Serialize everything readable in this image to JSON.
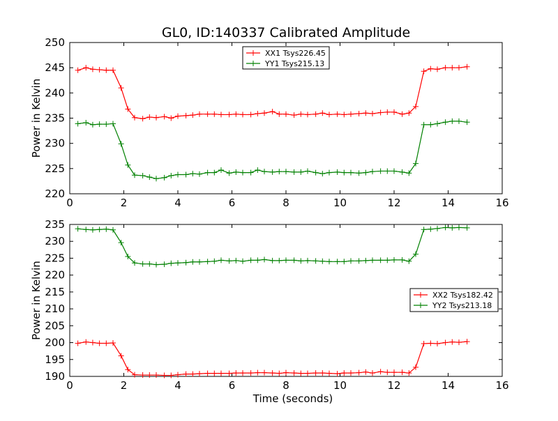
{
  "figure_title": "GL0, ID:140337 Calibrated Amplitude",
  "colors": {
    "red": "#ff0000",
    "green": "#008000",
    "axis": "#000000",
    "background": "#ffffff"
  },
  "chart_data": [
    {
      "type": "line",
      "ylabel": "Power in Kelvin",
      "xlabel": "",
      "xlim": [
        0,
        16
      ],
      "ylim": [
        220,
        250
      ],
      "xticks": [
        0,
        2,
        4,
        6,
        8,
        10,
        12,
        14,
        16
      ],
      "yticks": [
        220,
        225,
        230,
        235,
        240,
        245,
        250
      ],
      "legend_position": "top-center",
      "x": [
        0.3,
        0.6,
        0.85,
        1.1,
        1.35,
        1.6,
        1.9,
        2.15,
        2.4,
        2.7,
        2.95,
        3.2,
        3.5,
        3.75,
        4.0,
        4.3,
        4.55,
        4.8,
        5.1,
        5.35,
        5.6,
        5.9,
        6.15,
        6.4,
        6.7,
        6.95,
        7.2,
        7.5,
        7.75,
        8.0,
        8.3,
        8.55,
        8.8,
        9.1,
        9.35,
        9.6,
        9.9,
        10.15,
        10.4,
        10.7,
        10.95,
        11.2,
        11.5,
        11.75,
        12.0,
        12.3,
        12.55,
        12.8,
        13.1,
        13.35,
        13.6,
        13.9,
        14.15,
        14.4,
        14.7
      ],
      "series": [
        {
          "name": "XX1 Tsys226.45",
          "color": "#ff0000",
          "values": [
            244.5,
            245.0,
            244.7,
            244.6,
            244.5,
            244.5,
            241.0,
            236.8,
            235.1,
            234.9,
            235.2,
            235.1,
            235.3,
            235.0,
            235.4,
            235.5,
            235.6,
            235.8,
            235.8,
            235.8,
            235.7,
            235.7,
            235.8,
            235.7,
            235.7,
            235.9,
            236.0,
            236.3,
            235.8,
            235.8,
            235.6,
            235.8,
            235.7,
            235.8,
            236.0,
            235.7,
            235.8,
            235.7,
            235.8,
            235.9,
            236.0,
            235.9,
            236.1,
            236.2,
            236.2,
            235.8,
            236.0,
            237.3,
            244.3,
            244.8,
            244.7,
            245.0,
            245.0,
            245.0,
            245.2
          ]
        },
        {
          "name": "YY1 Tsys215.13",
          "color": "#008000",
          "values": [
            233.9,
            234.1,
            233.7,
            233.8,
            233.8,
            233.9,
            229.9,
            225.7,
            223.7,
            223.6,
            223.3,
            223.0,
            223.2,
            223.6,
            223.8,
            223.8,
            224.0,
            223.9,
            224.2,
            224.2,
            224.7,
            224.1,
            224.3,
            224.2,
            224.2,
            224.7,
            224.4,
            224.3,
            224.4,
            224.4,
            224.3,
            224.3,
            224.5,
            224.2,
            224.0,
            224.2,
            224.3,
            224.2,
            224.2,
            224.1,
            224.2,
            224.4,
            224.5,
            224.5,
            224.5,
            224.3,
            224.1,
            226.0,
            233.7,
            233.7,
            233.9,
            234.2,
            234.4,
            234.4,
            234.2
          ]
        }
      ]
    },
    {
      "type": "line",
      "ylabel": "Power in Kelvin",
      "xlabel": "Time (seconds)",
      "xlim": [
        0,
        16
      ],
      "ylim": [
        190,
        235
      ],
      "xticks": [
        0,
        2,
        4,
        6,
        8,
        10,
        12,
        14,
        16
      ],
      "yticks": [
        190,
        195,
        200,
        205,
        210,
        215,
        220,
        225,
        230,
        235
      ],
      "legend_position": "center-right",
      "x": [
        0.3,
        0.6,
        0.85,
        1.1,
        1.35,
        1.6,
        1.9,
        2.15,
        2.4,
        2.7,
        2.95,
        3.2,
        3.5,
        3.75,
        4.0,
        4.3,
        4.55,
        4.8,
        5.1,
        5.35,
        5.6,
        5.9,
        6.15,
        6.4,
        6.7,
        6.95,
        7.2,
        7.5,
        7.75,
        8.0,
        8.3,
        8.55,
        8.8,
        9.1,
        9.35,
        9.6,
        9.9,
        10.15,
        10.4,
        10.7,
        10.95,
        11.2,
        11.5,
        11.75,
        12.0,
        12.3,
        12.55,
        12.8,
        13.1,
        13.35,
        13.6,
        13.9,
        14.15,
        14.4,
        14.7
      ],
      "series": [
        {
          "name": "XX2 Tsys182.42",
          "color": "#ff0000",
          "values": [
            199.8,
            200.2,
            200.0,
            199.8,
            199.8,
            199.9,
            196.1,
            192.0,
            190.5,
            190.4,
            190.4,
            190.4,
            190.3,
            190.3,
            190.5,
            190.7,
            190.7,
            190.8,
            190.9,
            190.9,
            190.9,
            190.9,
            191.0,
            191.0,
            191.0,
            191.1,
            191.1,
            191.0,
            190.9,
            191.1,
            191.0,
            190.9,
            190.9,
            191.0,
            191.0,
            190.9,
            190.8,
            191.0,
            191.0,
            191.1,
            191.3,
            191.0,
            191.4,
            191.2,
            191.2,
            191.2,
            191.0,
            192.7,
            199.7,
            199.8,
            199.7,
            200.0,
            200.2,
            200.1,
            200.3
          ]
        },
        {
          "name": "YY2 Tsys213.18",
          "color": "#008000",
          "values": [
            233.7,
            233.5,
            233.4,
            233.5,
            233.6,
            233.4,
            229.6,
            225.5,
            223.6,
            223.3,
            223.3,
            223.1,
            223.2,
            223.5,
            223.6,
            223.7,
            223.9,
            223.9,
            224.0,
            224.1,
            224.4,
            224.2,
            224.3,
            224.1,
            224.4,
            224.4,
            224.6,
            224.3,
            224.3,
            224.4,
            224.4,
            224.2,
            224.3,
            224.2,
            224.1,
            224.0,
            224.0,
            224.0,
            224.2,
            224.2,
            224.3,
            224.4,
            224.4,
            224.4,
            224.5,
            224.5,
            224.1,
            226.2,
            233.5,
            233.6,
            233.8,
            234.1,
            234.0,
            234.1,
            234.0
          ]
        }
      ]
    }
  ]
}
